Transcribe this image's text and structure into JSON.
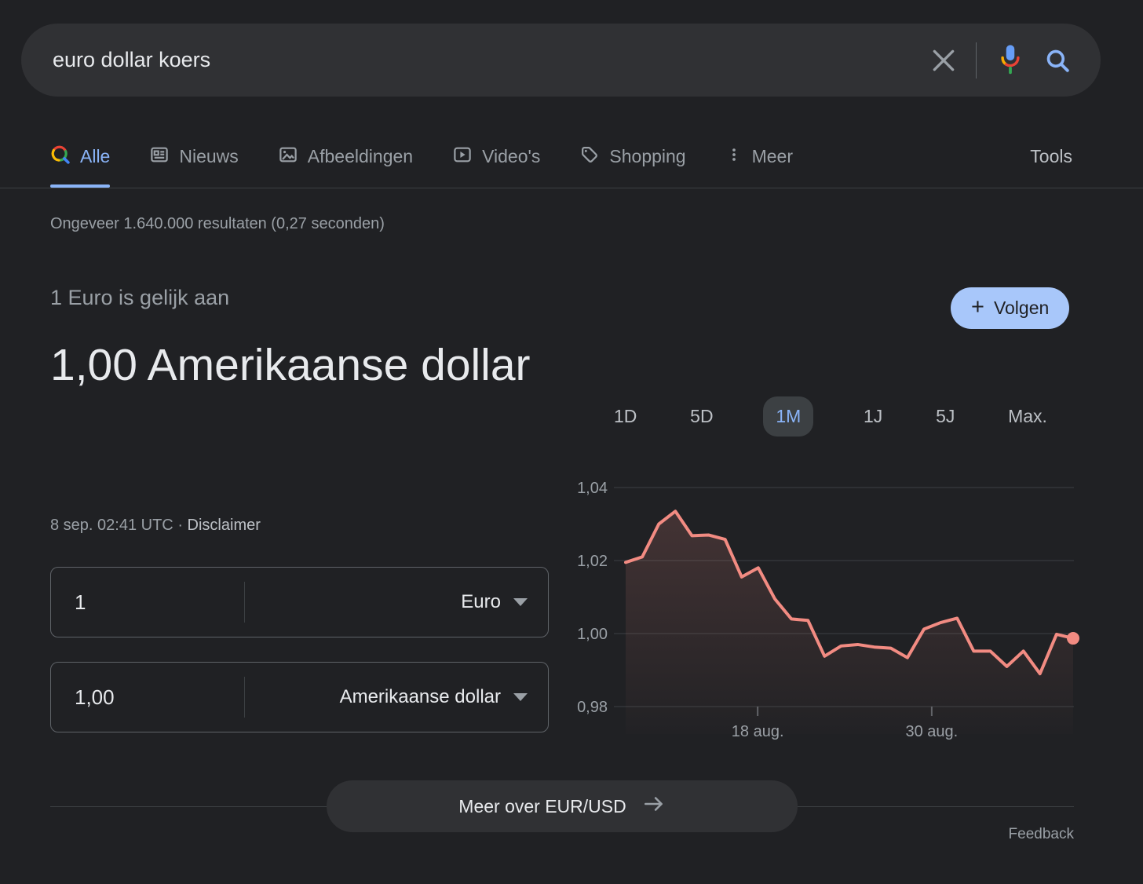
{
  "search": {
    "query": "euro dollar koers"
  },
  "tabs": {
    "items": [
      {
        "label": "Alle",
        "active": true
      },
      {
        "label": "Nieuws",
        "active": false
      },
      {
        "label": "Afbeeldingen",
        "active": false
      },
      {
        "label": "Video's",
        "active": false
      },
      {
        "label": "Shopping",
        "active": false
      },
      {
        "label": "Meer",
        "active": false
      }
    ],
    "tools_label": "Tools"
  },
  "stats": {
    "text": "Ongeveer 1.640.000 resultaten (0,27 seconden)"
  },
  "converter": {
    "heading": "1 Euro is gelijk aan",
    "result": "1,00 Amerikaanse dollar",
    "timestamp": "8 sep. 02:41 UTC",
    "separator": "·",
    "disclaimer": "Disclaimer",
    "from": {
      "amount": "1",
      "currency": "Euro"
    },
    "to": {
      "amount": "1,00",
      "currency": "Amerikaanse dollar"
    },
    "follow_plus": "+",
    "follow_label": "Volgen"
  },
  "chart_data": {
    "type": "line",
    "ranges": [
      "1D",
      "5D",
      "1M",
      "1J",
      "5J",
      "Max."
    ],
    "active_range": "1M",
    "y_ticks": [
      "1,04",
      "1,02",
      "1,00",
      "0,98"
    ],
    "ylim": [
      0.98,
      1.04
    ],
    "x_tick_labels": [
      {
        "label": "18 aug.",
        "fraction": 0.295
      },
      {
        "label": "30 aug.",
        "fraction": 0.684
      }
    ],
    "values": [
      1.0195,
      1.021,
      1.03,
      1.0335,
      1.0268,
      1.027,
      1.0258,
      1.0155,
      1.018,
      1.0095,
      1.004,
      1.0036,
      0.9938,
      0.9966,
      0.997,
      0.9963,
      0.996,
      0.9934,
      1.0012,
      1.003,
      1.0042,
      0.9952,
      0.9952,
      0.991,
      0.9952,
      0.989,
      0.9998,
      0.9987
    ],
    "line_color": "#f28b82",
    "grid_color": "#3c4043",
    "axis_label_color": "#9aa0a6",
    "end_dot": true,
    "grid": true
  },
  "theme": {
    "accent_blue": "#8ab4f8",
    "follow_pill_bg": "#a8c7fa",
    "background": "#202124",
    "surface": "#303134"
  },
  "footer": {
    "more_button": "Meer over EUR/USD",
    "feedback": "Feedback"
  }
}
